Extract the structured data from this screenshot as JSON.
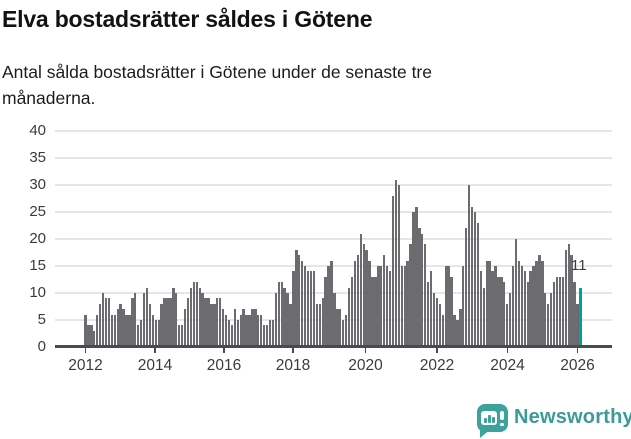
{
  "header": {
    "title": "Elva bostadsrätter såldes i Götene",
    "subtitle_line1": "Antal sålda bostadsrätter i Götene under de senaste tre",
    "subtitle_line2": "månaderna."
  },
  "chart_data": {
    "type": "bar",
    "title": "Elva bostadsrätter såldes i Götene",
    "subtitle": "Antal sålda bostadsrätter i Götene under de senaste tre månaderna.",
    "xlabel": "",
    "ylabel": "",
    "x_unit": "month",
    "x_start": "2012-01",
    "x_end": "2026-02",
    "x_tick_labels": [
      "2012",
      "2014",
      "2016",
      "2018",
      "2020",
      "2022",
      "2024",
      "2026"
    ],
    "y_ticks": [
      0,
      5,
      10,
      15,
      20,
      25,
      30,
      35,
      40
    ],
    "ylim": [
      0,
      40
    ],
    "grid": true,
    "legend": false,
    "bar_color": "#6c6c70",
    "series": [
      {
        "name": "Antal sålda bostadsrätter, rullande tre månader",
        "values": [
          6,
          4,
          4,
          3,
          6,
          8,
          10,
          9,
          9,
          6,
          6,
          7,
          8,
          7,
          6,
          6,
          9,
          10,
          4,
          5,
          10,
          11,
          8,
          6,
          5,
          5,
          8,
          9,
          9,
          9,
          11,
          10,
          4,
          4,
          7,
          9,
          11,
          12,
          12,
          11,
          10,
          9,
          9,
          8,
          8,
          9,
          9,
          7,
          6,
          5,
          4,
          7,
          5,
          6,
          7,
          6,
          6,
          7,
          7,
          6,
          6,
          4,
          4,
          5,
          5,
          10,
          12,
          12,
          11,
          10,
          8,
          14,
          18,
          17,
          16,
          15,
          14,
          14,
          14,
          8,
          8,
          9,
          13,
          15,
          16,
          10,
          7,
          7,
          5,
          6,
          11,
          13,
          16,
          17,
          21,
          19,
          18,
          16,
          13,
          13,
          15,
          15,
          17,
          15,
          14,
          28,
          31,
          30,
          15,
          15,
          16,
          19,
          25,
          26,
          22,
          21,
          19,
          12,
          14,
          10,
          9,
          8,
          6,
          15,
          15,
          13,
          6,
          5,
          7,
          15,
          22,
          30,
          26,
          25,
          23,
          14,
          11,
          16,
          16,
          14,
          15,
          13,
          13,
          12,
          8,
          10,
          15,
          20,
          16,
          15,
          14,
          12,
          14,
          15,
          16,
          17,
          16,
          10,
          8,
          10,
          12,
          13,
          13,
          13,
          18,
          19,
          17,
          12,
          8,
          11
        ]
      }
    ],
    "highlight": {
      "index": 169,
      "value": 11,
      "label": "11",
      "color": "#00a09b"
    }
  },
  "annotation": {
    "last_value_label": "11"
  },
  "footer": {
    "brand": "Newsworthy"
  },
  "colors": {
    "bar": "#6c6c70",
    "highlight": "#00a09b",
    "axis": "#4b4b4d",
    "grid": "#e6e6e6",
    "tick_text": "#3b3b3b",
    "brand_teal": "#3d9b97"
  }
}
